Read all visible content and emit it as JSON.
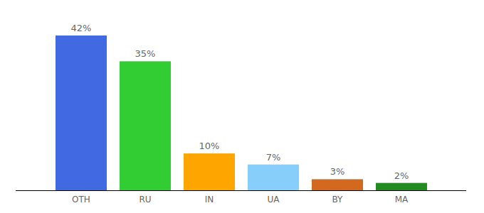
{
  "chart_data": {
    "type": "bar",
    "categories": [
      "OTH",
      "RU",
      "IN",
      "UA",
      "BY",
      "MA"
    ],
    "values": [
      42,
      35,
      10,
      7,
      3,
      2
    ],
    "value_labels": [
      "42%",
      "35%",
      "10%",
      "7%",
      "3%",
      "2%"
    ],
    "colors": [
      "#4169e1",
      "#32cd32",
      "#ffa500",
      "#87cefa",
      "#d2691e",
      "#228b22"
    ],
    "ylim": [
      0,
      42
    ],
    "data_labels": true,
    "tick_labels": "x",
    "grid": false
  }
}
